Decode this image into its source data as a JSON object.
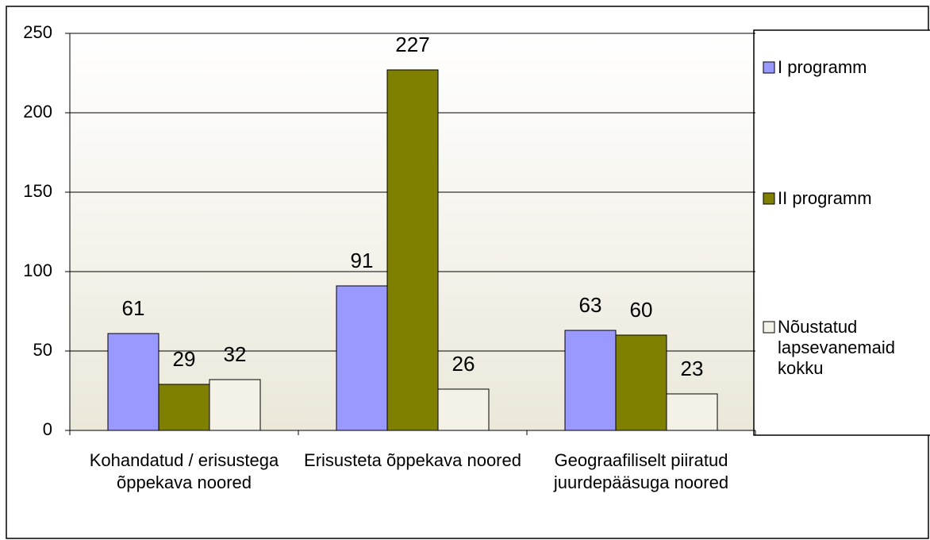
{
  "chart_data": {
    "type": "bar",
    "categories": [
      "Kohandatud / erisustega õppekava noored",
      "Erisusteta õppekava noored",
      "Geograafiliselt piiratud juurdepääsuga noored"
    ],
    "series": [
      {
        "name": "I programm",
        "color": "#9999ff",
        "values": [
          61,
          91,
          63
        ]
      },
      {
        "name": "II programm",
        "color": "#808000",
        "values": [
          29,
          227,
          60
        ]
      },
      {
        "name": "Nõustatud lapsevanemaid kokku",
        "color": "#f4f2e6",
        "values": [
          32,
          26,
          23
        ]
      }
    ],
    "ylim": [
      0,
      250
    ],
    "yticks": [
      0,
      50,
      100,
      150,
      200,
      250
    ],
    "grid": true,
    "legend": "right"
  }
}
